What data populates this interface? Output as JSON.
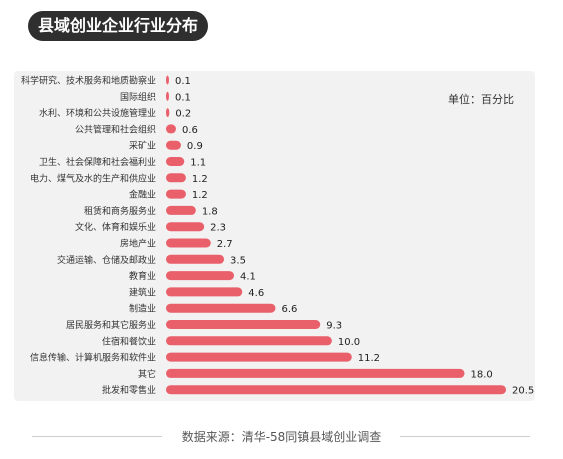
{
  "title": "县域创业企业行业分布",
  "unit": "单位：百分比",
  "source": "数据来源：清华-58同镇县域创业调查",
  "chart_data": {
    "type": "bar",
    "orientation": "horizontal",
    "bar_color": "#e9606b",
    "panel_color": "#f2f2f2",
    "categories": [
      "科学研究、技术服务和地质勘察业",
      "国际组织",
      "水利、环境和公共设施管理业",
      "公共管理和社会组织",
      "采矿业",
      "卫生、社会保障和社会福利业",
      "电力、煤气及水的生产和供应业",
      "金融业",
      "租赁和商务服务业",
      "文化、体育和娱乐业",
      "房地产业",
      "交通运输、仓储及邮政业",
      "教育业",
      "建筑业",
      "制造业",
      "居民服务和其它服务业",
      "住宿和餐饮业",
      "信息传输、计算机服务和软件业",
      "其它",
      "批发和零售业"
    ],
    "values": [
      0.1,
      0.1,
      0.2,
      0.6,
      0.9,
      1.1,
      1.2,
      1.2,
      1.8,
      2.3,
      2.7,
      3.5,
      4.1,
      4.6,
      6.6,
      9.3,
      10.0,
      11.2,
      18.0,
      20.5
    ],
    "value_labels": [
      "0.1",
      "0.1",
      "0.2",
      "0.6",
      "0.9",
      "1.1",
      "1.2",
      "1.2",
      "1.8",
      "2.3",
      "2.7",
      "3.5",
      "4.1",
      "4.6",
      "6.6",
      "9.3",
      "10.0",
      "11.2",
      "18.0",
      "20.5"
    ],
    "xlim": [
      0,
      20.5
    ]
  }
}
